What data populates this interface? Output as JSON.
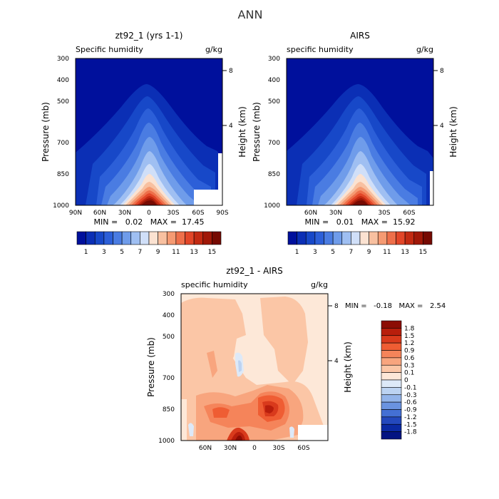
{
  "figure": {
    "title": "ANN"
  },
  "chart_data": [
    {
      "type": "heatmap",
      "title": "zt92_1 (yrs 1-1)",
      "variable": "Specific humidity",
      "units": "g/kg",
      "ylabel": "Pressure (mb)",
      "ylabel_right": "Height (km)",
      "y_scale": "log",
      "ylim": [
        1000,
        300
      ],
      "yticks": [
        "300",
        "400",
        "500",
        "700",
        "850",
        "1000"
      ],
      "yticks_right": [
        "8",
        "4"
      ],
      "xlim": [
        90,
        -90
      ],
      "xticks": [
        "90N",
        "60N",
        "30N",
        "0",
        "30S",
        "60S",
        "90S"
      ],
      "stats": "MIN =   0.02   MAX =  17.45",
      "min": 0.02,
      "max": 17.45,
      "colorbar_labels": [
        "1",
        "3",
        "5",
        "7",
        "9",
        "11",
        "13",
        "15"
      ],
      "colorbar_colors": [
        "#00109c",
        "#0b2fb5",
        "#1748c8",
        "#2c5fd8",
        "#4a7ce2",
        "#6f9cea",
        "#9fbff2",
        "#d0dff8",
        "#fbe2d1",
        "#f8c0a0",
        "#f59a72",
        "#ee6f4a",
        "#e24628",
        "#c22a12",
        "#a01808",
        "#760a02"
      ]
    },
    {
      "type": "heatmap",
      "title": "AIRS",
      "variable": "specific humidity",
      "units": "g/kg",
      "ylabel": "Pressure (mb)",
      "ylabel_right": "Height (km)",
      "y_scale": "log",
      "ylim": [
        1000,
        300
      ],
      "yticks": [
        "300",
        "400",
        "500",
        "700",
        "850",
        "1000"
      ],
      "yticks_right": [
        "8",
        "4"
      ],
      "xlim": [
        90,
        -90
      ],
      "xticks": [
        "60N",
        "30N",
        "0",
        "30S",
        "60S"
      ],
      "stats": "MIN =   0.01   MAX =  15.92",
      "min": 0.01,
      "max": 15.92,
      "colorbar_labels": [
        "1",
        "3",
        "5",
        "7",
        "9",
        "11",
        "13",
        "15"
      ],
      "colorbar_colors": [
        "#00109c",
        "#0b2fb5",
        "#1748c8",
        "#2c5fd8",
        "#4a7ce2",
        "#6f9cea",
        "#9fbff2",
        "#d0dff8",
        "#fbe2d1",
        "#f8c0a0",
        "#f59a72",
        "#ee6f4a",
        "#e24628",
        "#c22a12",
        "#a01808",
        "#760a02"
      ]
    },
    {
      "type": "heatmap",
      "title": "zt92_1 - AIRS",
      "variable": "specific humidity",
      "units": "g/kg",
      "ylabel": "Pressure (mb)",
      "ylabel_right": "Height (km)",
      "y_scale": "log",
      "ylim": [
        1000,
        300
      ],
      "yticks": [
        "300",
        "400",
        "500",
        "700",
        "850",
        "1000"
      ],
      "yticks_right": [
        "8",
        "4"
      ],
      "xlim": [
        90,
        -90
      ],
      "xticks": [
        "60N",
        "30N",
        "0",
        "30S",
        "60S"
      ],
      "stats": "MIN =   -0.18   MAX =   2.54",
      "min": -0.18,
      "max": 2.54,
      "colorbar_labels": [
        "1.8",
        "1.5",
        "1.2",
        "0.9",
        "0.6",
        "0.3",
        "0.1",
        "0",
        "-0.1",
        "-0.3",
        "-0.6",
        "-0.9",
        "-1.2",
        "-1.5",
        "-1.8"
      ],
      "colorbar_colors": [
        "#8c0d04",
        "#b81e0c",
        "#d93a1c",
        "#ef5d33",
        "#f5845a",
        "#f8a57e",
        "#fbc6a6",
        "#fde8d8",
        "#dde9f8",
        "#bcd3f2",
        "#93b4ea",
        "#6a93e0",
        "#4470d4",
        "#2449bd",
        "#0b2aa3",
        "#031482"
      ]
    }
  ]
}
